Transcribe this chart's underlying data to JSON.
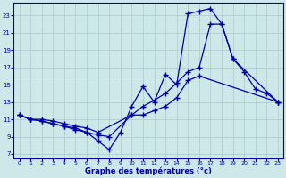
{
  "xlabel": "Graphe des températures (°c)",
  "bg_color": "#cce8e8",
  "line_color": "#0000aa",
  "grid_color": "#aacccc",
  "axis_label_color": "#0000aa",
  "tick_color": "#0000aa",
  "xlim": [
    -0.5,
    23.5
  ],
  "ylim": [
    6.5,
    24.5
  ],
  "yticks": [
    7,
    9,
    11,
    13,
    15,
    17,
    19,
    21,
    23
  ],
  "xticks": [
    0,
    1,
    2,
    3,
    4,
    5,
    6,
    7,
    8,
    9,
    10,
    11,
    12,
    13,
    14,
    15,
    16,
    17,
    18,
    19,
    20,
    21,
    22,
    23
  ],
  "series1_x": [
    0,
    1,
    2,
    3,
    4,
    5,
    6,
    7,
    8,
    9,
    10,
    11,
    12,
    13,
    14,
    15,
    16,
    17,
    18,
    19,
    20,
    21,
    22,
    23
  ],
  "series1_y": [
    11.5,
    11.0,
    10.8,
    10.5,
    10.2,
    10.0,
    9.5,
    8.5,
    7.5,
    9.5,
    12.5,
    14.8,
    13.0,
    16.2,
    15.0,
    23.2,
    23.5,
    23.8,
    22.0,
    18.0,
    16.5,
    14.5,
    14.0,
    13.0
  ],
  "series2_x": [
    0,
    1,
    2,
    3,
    4,
    5,
    6,
    7,
    8,
    10,
    11,
    12,
    13,
    14,
    15,
    16,
    17,
    18,
    19,
    23
  ],
  "series2_y": [
    11.5,
    11.0,
    10.8,
    10.5,
    10.2,
    9.8,
    9.5,
    9.2,
    9.0,
    11.5,
    12.5,
    13.2,
    14.0,
    15.2,
    16.5,
    17.0,
    22.0,
    22.0,
    18.0,
    13.0
  ],
  "series3_x": [
    0,
    1,
    2,
    3,
    4,
    5,
    6,
    7,
    10,
    11,
    12,
    13,
    14,
    15,
    16,
    23
  ],
  "series3_y": [
    11.5,
    11.0,
    11.0,
    10.8,
    10.5,
    10.2,
    10.0,
    9.5,
    11.5,
    11.5,
    12.0,
    12.5,
    13.5,
    15.5,
    16.0,
    13.0
  ]
}
